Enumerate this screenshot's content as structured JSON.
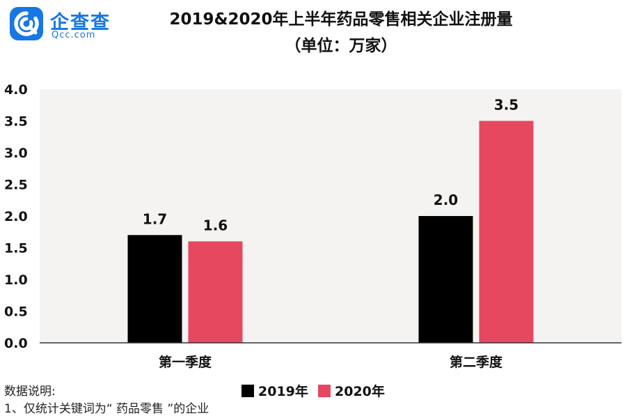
{
  "brand": {
    "name": "企查查",
    "url": "Qcc.com",
    "color": "#1677e5",
    "icon": "qcc-logo-icon"
  },
  "notes": {
    "heading": "数据说明:",
    "line1": "1、仅统计关键词为“ 药品零售 ”的企业"
  },
  "chart_data": {
    "type": "bar",
    "title": "2019&2020年上半年药品零售相关企业注册量",
    "subtitle": "（单位：万家）",
    "categories": [
      "第一季度",
      "第二季度"
    ],
    "series": [
      {
        "name": "2019年",
        "color": "#000000",
        "values": [
          1.7,
          2.0
        ],
        "labels": [
          "1.7",
          "2.0"
        ]
      },
      {
        "name": "2020年",
        "color": "#e5485f",
        "values": [
          1.6,
          3.5
        ],
        "labels": [
          "1.6",
          "3.5"
        ]
      }
    ],
    "yticks": [
      "0.0",
      "0.5",
      "1.0",
      "1.5",
      "2.0",
      "2.5",
      "3.0",
      "3.5",
      "4.0"
    ],
    "ylim": [
      0,
      4
    ],
    "xlabel": "",
    "ylabel": "",
    "grid": false,
    "plot_background": "#f4f3f1",
    "legend_position": "bottom"
  }
}
